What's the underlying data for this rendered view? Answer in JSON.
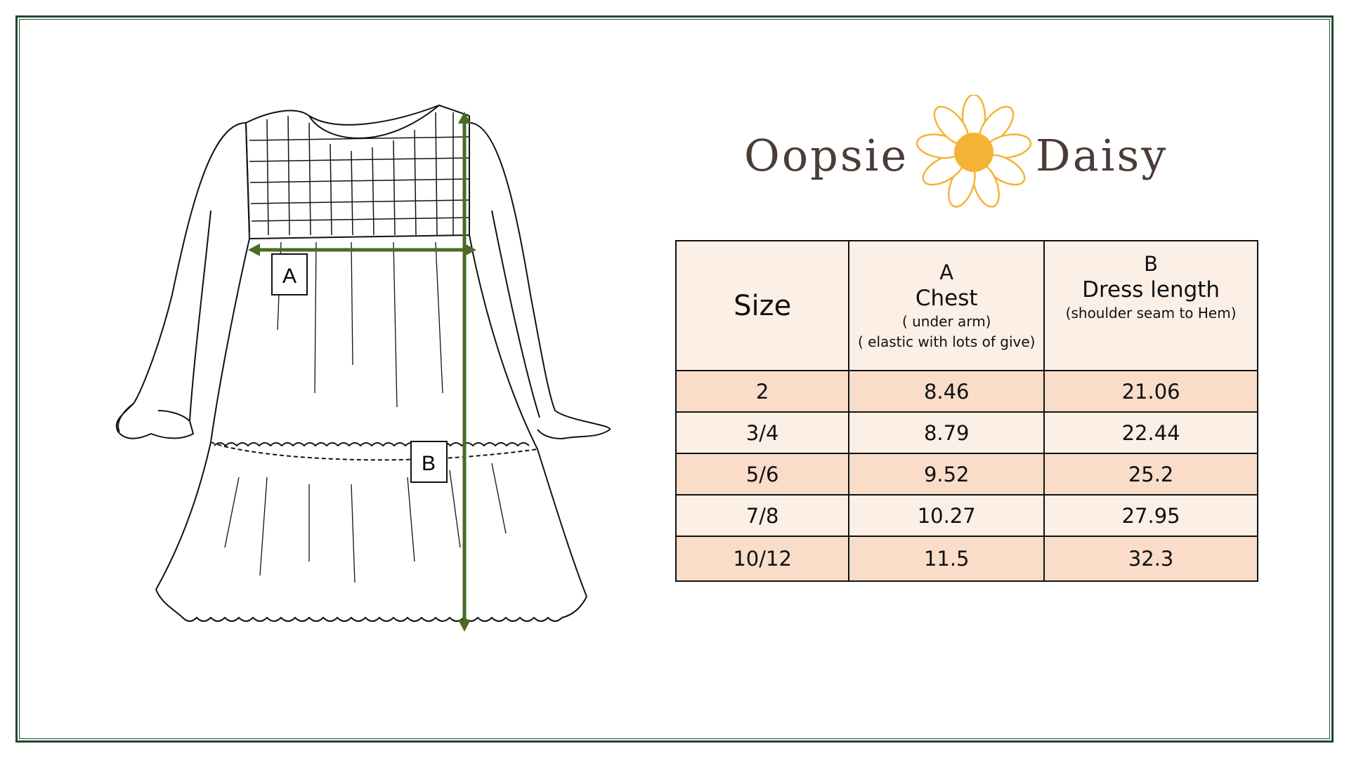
{
  "brand": {
    "logo_text_left": "Oopsie",
    "logo_text_right": "Daisy",
    "accent": "#f5b335",
    "text_color": "#4a3c36"
  },
  "diagram": {
    "label_a": "A",
    "label_b": "B",
    "arrow_color": "#4a6b25"
  },
  "table": {
    "headers": {
      "size": "Size",
      "chest_letter": "A",
      "chest_title": "Chest",
      "chest_sub1": "( under arm)",
      "chest_sub2": "( elastic with lots of give)",
      "length_letter": "B",
      "length_title": "Dress length",
      "length_sub": "(shoulder seam to Hem)"
    },
    "rows": [
      {
        "size": "2",
        "chest": "8.46",
        "length": "21.06"
      },
      {
        "size": "3/4",
        "chest": "8.79",
        "length": "22.44"
      },
      {
        "size": "5/6",
        "chest": "9.52",
        "length": "25.2"
      },
      {
        "size": "7/8",
        "chest": "10.27",
        "length": "27.95"
      },
      {
        "size": "10/12",
        "chest": "11.5",
        "length": "32.3"
      }
    ]
  },
  "frame_color": "#1f4a2e"
}
